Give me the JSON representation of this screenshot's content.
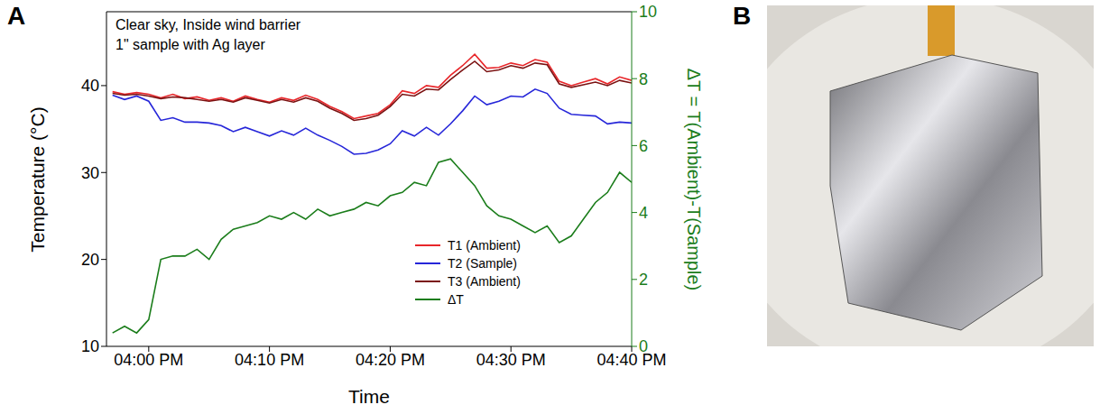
{
  "panel_labels": [
    "A",
    "B"
  ],
  "chart_data": {
    "type": "line",
    "annotations": [
      "Clear sky, Inside wind barrier",
      "1\" sample with Ag layer"
    ],
    "x_label": "Time",
    "y_label": "Temperature (°C)",
    "y2_label": "ΔT = T(Ambient)-T(Sample)",
    "x": [
      957,
      958,
      959,
      960,
      961,
      962,
      963,
      964,
      965,
      966,
      967,
      968,
      969,
      970,
      971,
      972,
      973,
      974,
      975,
      976,
      977,
      978,
      979,
      980,
      981,
      982,
      983,
      984,
      985,
      986,
      987,
      988,
      989,
      990,
      991,
      992,
      993,
      994,
      995,
      996,
      997,
      998,
      999,
      1000
    ],
    "xlim": [
      956.5,
      1000
    ],
    "xticks": [
      {
        "value": 960,
        "label": "04:00 PM"
      },
      {
        "value": 970,
        "label": "04:10 PM"
      },
      {
        "value": 980,
        "label": "04:20 PM"
      },
      {
        "value": 990,
        "label": "04:30 PM"
      },
      {
        "value": 1000,
        "label": "04:40 PM"
      }
    ],
    "ylim": [
      10,
      48.5
    ],
    "yticks": [
      10,
      20,
      30,
      40
    ],
    "y2lim": [
      0,
      10
    ],
    "y2ticks": [
      0,
      2,
      4,
      6,
      8,
      10
    ],
    "legend": "lower right",
    "series": [
      {
        "name": "T1 (Ambient)",
        "color": "#e8262a",
        "values": [
          39.3,
          39.0,
          39.2,
          39.0,
          38.6,
          39.0,
          38.5,
          38.7,
          38.3,
          38.6,
          38.2,
          38.8,
          38.4,
          38.1,
          38.6,
          38.3,
          38.9,
          38.4,
          37.6,
          37.0,
          36.2,
          36.5,
          36.8,
          37.8,
          39.4,
          39.1,
          40.0,
          39.8,
          41.2,
          42.3,
          43.6,
          42.0,
          42.1,
          42.6,
          42.3,
          43.0,
          42.7,
          40.5,
          40.0,
          40.4,
          40.8,
          40.2,
          41.0,
          40.6
        ]
      },
      {
        "name": "T2 (Sample)",
        "color": "#2626d9",
        "values": [
          38.9,
          38.4,
          38.8,
          38.2,
          36.0,
          36.3,
          35.8,
          35.8,
          35.7,
          35.4,
          34.7,
          35.2,
          34.7,
          34.2,
          34.8,
          34.3,
          35.1,
          34.3,
          33.7,
          33.0,
          32.1,
          32.2,
          32.6,
          33.3,
          34.8,
          34.2,
          35.2,
          34.3,
          35.6,
          37.1,
          38.8,
          37.8,
          38.2,
          38.8,
          38.7,
          39.6,
          39.1,
          37.4,
          36.7,
          36.6,
          36.5,
          35.6,
          35.8,
          35.7
        ]
      },
      {
        "name": "T3 (Ambient)",
        "color": "#7b1212",
        "values": [
          39.1,
          38.9,
          39.0,
          38.8,
          38.5,
          38.7,
          38.6,
          38.4,
          38.2,
          38.4,
          38.1,
          38.6,
          38.3,
          38.0,
          38.4,
          38.1,
          38.6,
          38.2,
          37.4,
          36.8,
          36.0,
          36.2,
          36.6,
          37.6,
          39.0,
          38.8,
          39.6,
          39.5,
          40.7,
          41.8,
          42.8,
          41.6,
          41.8,
          42.3,
          42.0,
          42.6,
          42.4,
          40.2,
          39.8,
          40.1,
          40.4,
          40.0,
          40.6,
          40.3
        ]
      },
      {
        "name": "ΔT",
        "color": "#1b7d1b",
        "axis": "y2",
        "values": [
          0.4,
          0.6,
          0.4,
          0.8,
          2.6,
          2.7,
          2.7,
          2.9,
          2.6,
          3.2,
          3.5,
          3.6,
          3.7,
          3.9,
          3.8,
          4.0,
          3.8,
          4.1,
          3.9,
          4.0,
          4.1,
          4.3,
          4.2,
          4.5,
          4.6,
          4.9,
          4.8,
          5.5,
          5.6,
          5.2,
          4.8,
          4.2,
          3.9,
          3.8,
          3.6,
          3.4,
          3.6,
          3.1,
          3.3,
          3.8,
          4.3,
          4.6,
          5.2,
          4.9
        ]
      }
    ]
  }
}
